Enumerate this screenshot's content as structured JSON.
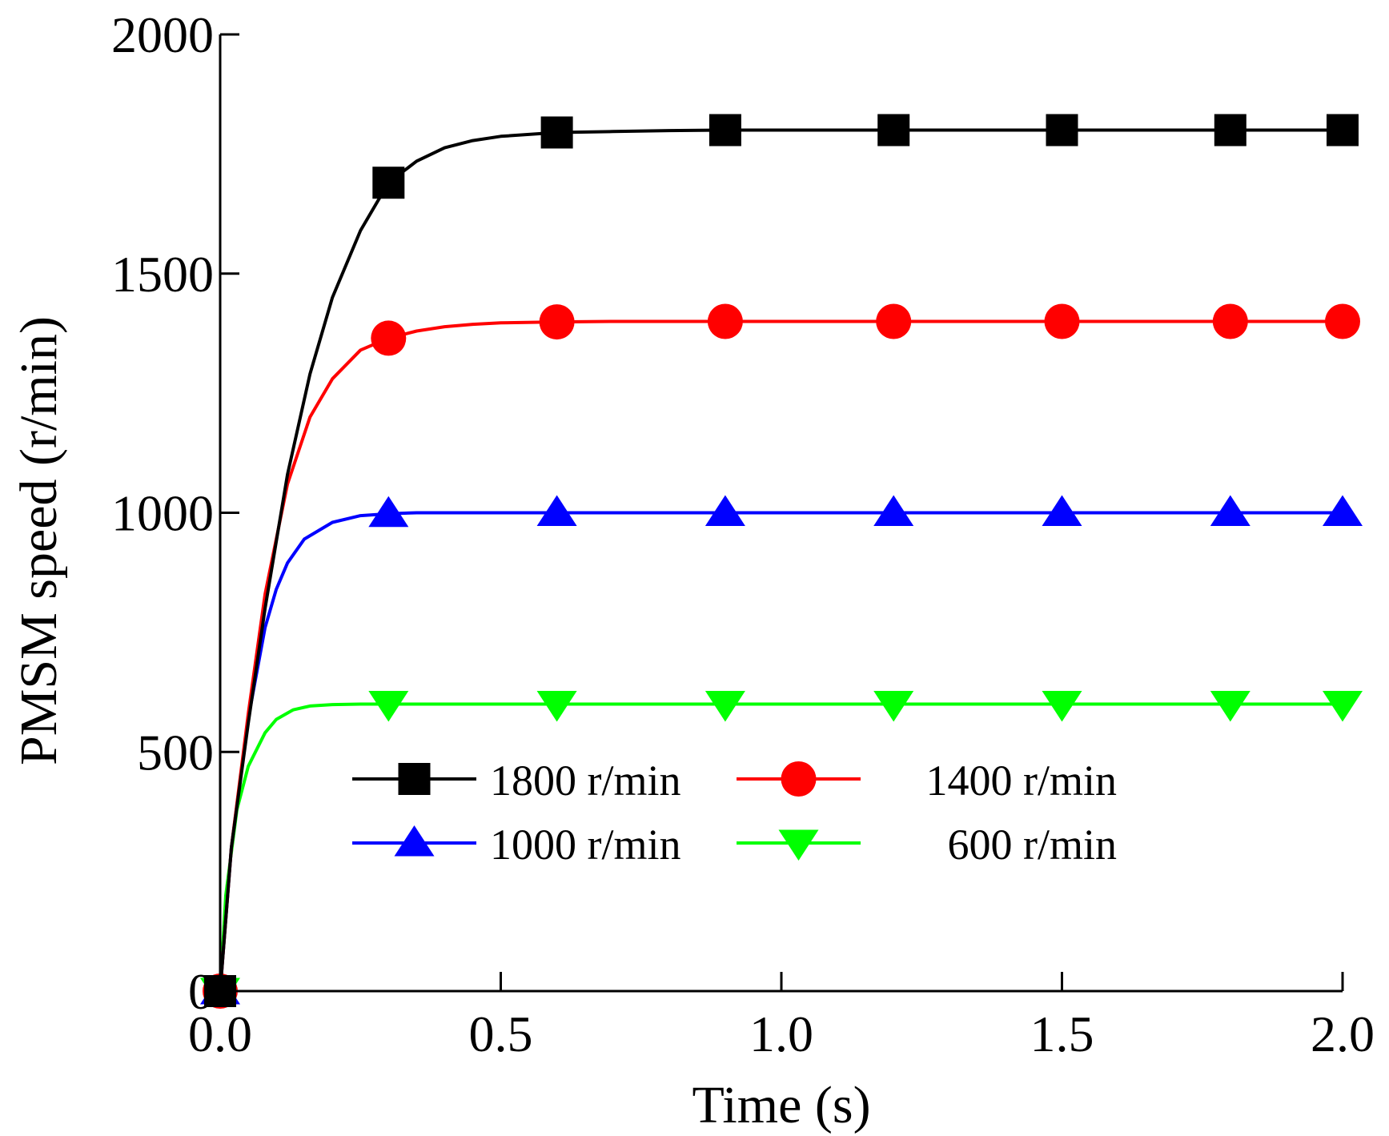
{
  "chart_data": {
    "type": "line",
    "title": "",
    "xlabel": "Time (s)",
    "ylabel": "PMSM speed (r/min)",
    "xlim": [
      0,
      2.0
    ],
    "ylim": [
      0,
      2000
    ],
    "xticks": [
      0.0,
      0.5,
      1.0,
      1.5,
      2.0
    ],
    "xtick_labels": [
      "0.0",
      "0.5",
      "1.0",
      "1.5",
      "2.0"
    ],
    "yticks": [
      0,
      500,
      1000,
      1500,
      2000
    ],
    "ytick_labels": [
      "0",
      "500",
      "1000",
      "1500",
      "2000"
    ],
    "grid": false,
    "legend_position": "lower-center",
    "series": [
      {
        "name": "1800 r/min",
        "legend_label": "1800 r/min",
        "color": "#000000",
        "marker": "square",
        "steady_value": 1800,
        "marker_x": [
          0.0,
          0.3,
          0.6,
          0.9,
          1.2,
          1.5,
          1.8,
          2.0
        ],
        "x": [
          0.0,
          0.02,
          0.05,
          0.08,
          0.12,
          0.16,
          0.2,
          0.25,
          0.3,
          0.35,
          0.4,
          0.45,
          0.5,
          0.6,
          0.7,
          0.8,
          0.9,
          1.2,
          1.5,
          1.8,
          2.0
        ],
        "y": [
          0,
          300,
          560,
          800,
          1080,
          1290,
          1450,
          1590,
          1690,
          1735,
          1763,
          1778,
          1787,
          1795,
          1797,
          1799,
          1800,
          1800,
          1800,
          1800,
          1800
        ]
      },
      {
        "name": "1400 r/min",
        "legend_label": "1400 r/min",
        "color": "#ff0000",
        "marker": "circle",
        "steady_value": 1400,
        "marker_x": [
          0.0,
          0.3,
          0.6,
          0.9,
          1.2,
          1.5,
          1.8,
          2.0
        ],
        "x": [
          0.0,
          0.02,
          0.05,
          0.08,
          0.12,
          0.16,
          0.2,
          0.25,
          0.3,
          0.35,
          0.4,
          0.45,
          0.5,
          0.6,
          0.7,
          0.8,
          0.9,
          1.2,
          1.5,
          1.8,
          2.0
        ],
        "y": [
          0,
          300,
          580,
          830,
          1060,
          1200,
          1280,
          1340,
          1365,
          1380,
          1389,
          1394,
          1397,
          1399,
          1400,
          1400,
          1400,
          1400,
          1400,
          1400,
          1400
        ]
      },
      {
        "name": "1000 r/min",
        "legend_label": "1000 r/min",
        "color": "#0000ff",
        "marker": "triangle-up",
        "steady_value": 1000,
        "marker_x": [
          0.0,
          0.3,
          0.6,
          0.9,
          1.2,
          1.5,
          1.8,
          2.0
        ],
        "x": [
          0.0,
          0.02,
          0.05,
          0.08,
          0.1,
          0.12,
          0.15,
          0.2,
          0.25,
          0.3,
          0.35,
          0.4,
          0.5,
          0.6,
          0.9,
          1.2,
          1.5,
          1.8,
          2.0
        ],
        "y": [
          0,
          300,
          570,
          760,
          840,
          895,
          945,
          980,
          994,
          998,
          1000,
          1000,
          1000,
          1000,
          1000,
          1000,
          1000,
          1000,
          1000
        ]
      },
      {
        "name": "600 r/min",
        "legend_label": "600 r/min",
        "color": "#00ff00",
        "marker": "triangle-down",
        "steady_value": 600,
        "marker_x": [
          0.0,
          0.3,
          0.6,
          0.9,
          1.2,
          1.5,
          1.8,
          2.0
        ],
        "x": [
          0.0,
          0.01,
          0.03,
          0.05,
          0.08,
          0.1,
          0.13,
          0.16,
          0.2,
          0.25,
          0.3,
          0.4,
          0.6,
          0.9,
          1.2,
          1.5,
          1.8,
          2.0
        ],
        "y": [
          0,
          200,
          380,
          470,
          540,
          568,
          588,
          596,
          599,
          600,
          600,
          600,
          600,
          600,
          600,
          600,
          600,
          600
        ]
      }
    ]
  }
}
